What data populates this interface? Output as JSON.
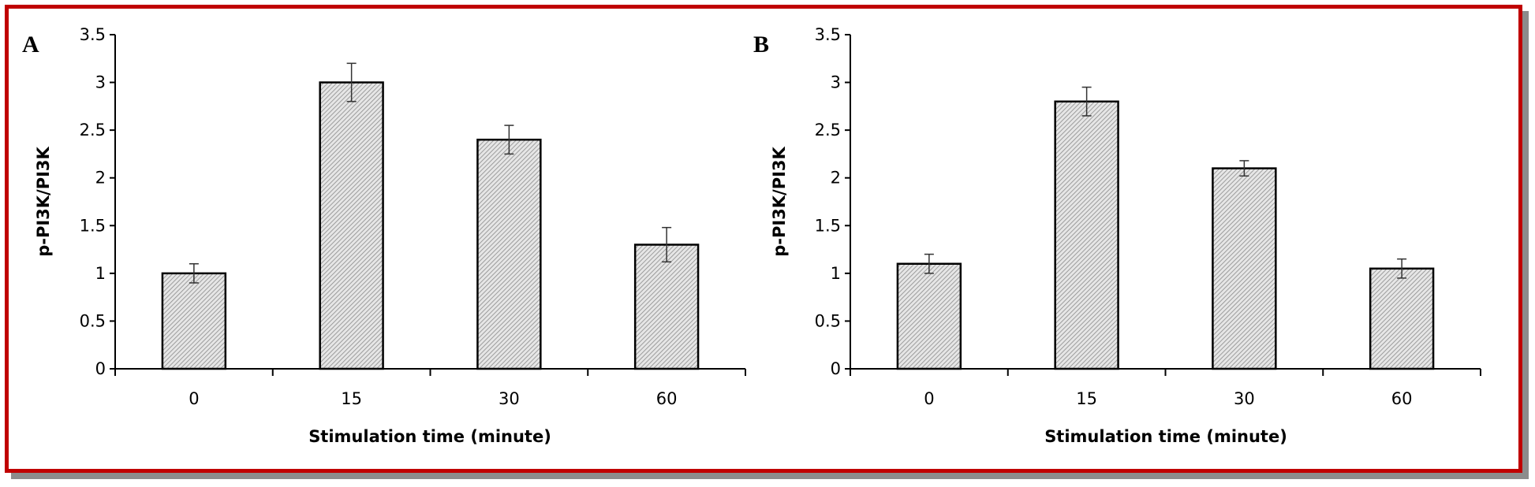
{
  "chart_data": [
    {
      "panel": "A",
      "type": "bar",
      "categories": [
        "0",
        "15",
        "30",
        "60"
      ],
      "values": [
        1.0,
        3.0,
        2.4,
        1.3
      ],
      "errors": [
        0.1,
        0.2,
        0.15,
        0.18
      ],
      "xlabel": "Stimulation time (minute)",
      "ylabel": "p-PI3K/PI3K",
      "ylim": [
        0,
        3.5
      ],
      "yticks": [
        "0",
        "0.5",
        "1",
        "1.5",
        "2",
        "2.5",
        "3",
        "3.5"
      ],
      "grid": false,
      "bar_fill": "hatched gray"
    },
    {
      "panel": "B",
      "type": "bar",
      "categories": [
        "0",
        "15",
        "30",
        "60"
      ],
      "values": [
        1.1,
        2.8,
        2.1,
        1.05
      ],
      "errors": [
        0.1,
        0.15,
        0.08,
        0.1
      ],
      "xlabel": "Stimulation time (minute)",
      "ylabel": "p-PI3K/PI3K",
      "ylim": [
        0,
        3.5
      ],
      "yticks": [
        "0",
        "0.5",
        "1",
        "1.5",
        "2",
        "2.5",
        "3",
        "3.5"
      ],
      "grid": false,
      "bar_fill": "hatched gray"
    }
  ],
  "colors": {
    "frame_border": "#c00000",
    "frame_shadow": "#8c8c8c",
    "bar_edge": "#000000",
    "bar_hatch": "#8a8a8a",
    "bar_background": "#e6e6e6"
  }
}
